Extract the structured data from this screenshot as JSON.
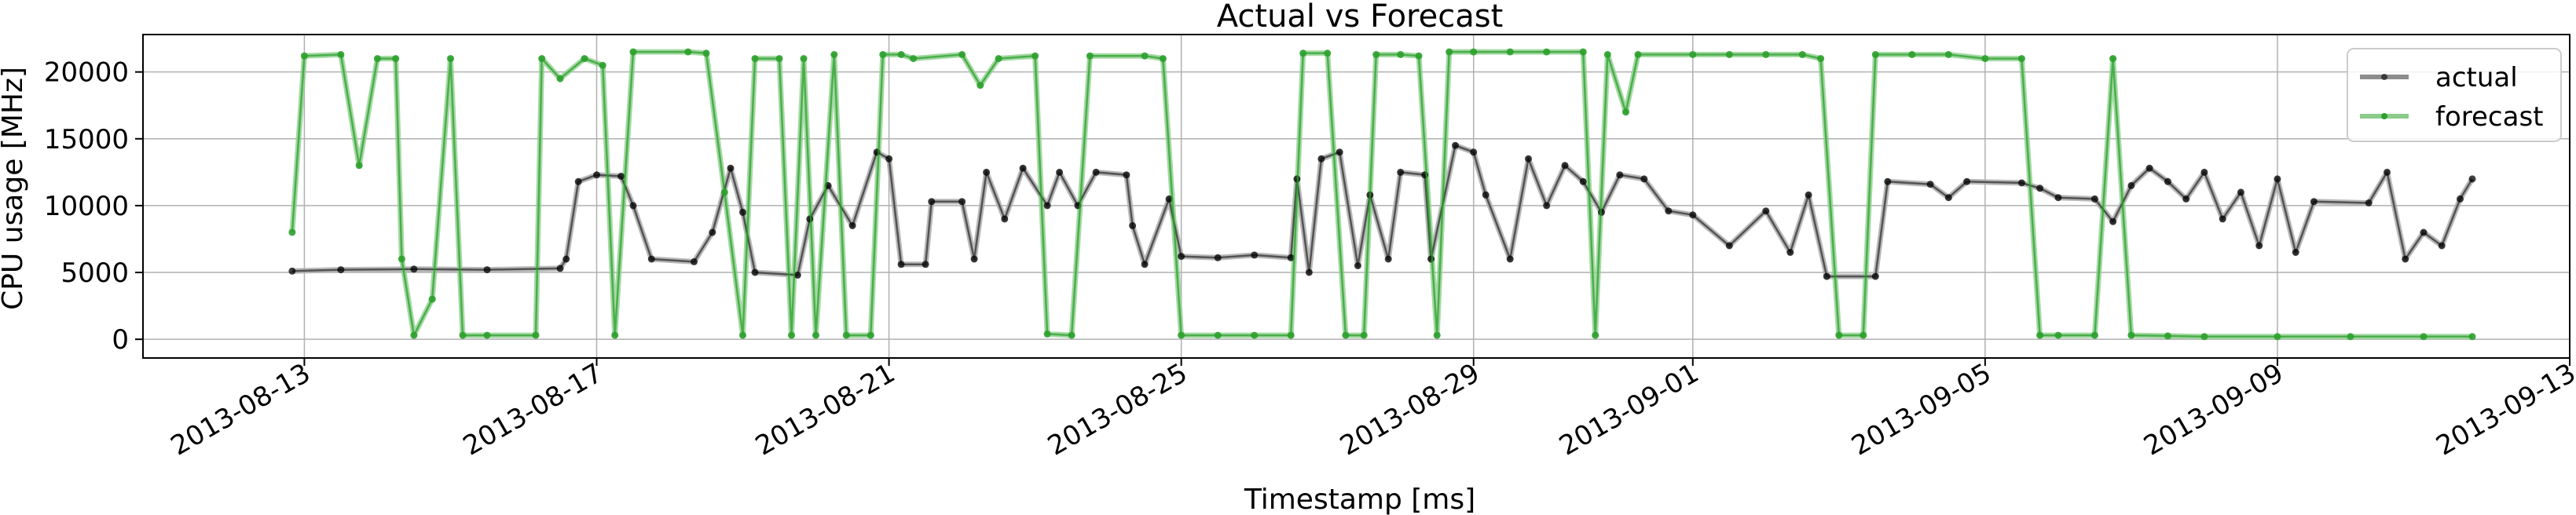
{
  "chart_data": {
    "type": "line",
    "title": "Actual vs Forecast",
    "xlabel": "Timestamp [ms]",
    "ylabel": "CPU usage [MHz]",
    "x_type": "date",
    "xlim": [
      "2013-08-10T19:00",
      "2013-09-13T00:00"
    ],
    "ylim": [
      -1400,
      22800
    ],
    "x_ticks": [
      "2013-08-13",
      "2013-08-17",
      "2013-08-21",
      "2013-08-25",
      "2013-08-29",
      "2013-09-01",
      "2013-09-05",
      "2013-09-09",
      "2013-09-13"
    ],
    "y_ticks": [
      0,
      5000,
      10000,
      15000,
      20000
    ],
    "y_tick_labels": [
      "0",
      "5000",
      "10000",
      "15000",
      "20000"
    ],
    "grid": true,
    "legend": {
      "placement": "top-right"
    },
    "colors": {
      "actual": "#000000",
      "actual_fill": "#b0b0b0",
      "forecast": "#2ca02c",
      "forecast_fill": "#8fd08f"
    },
    "series": [
      {
        "name": "actual",
        "points": [
          [
            "2013-08-12T20:00",
            5100
          ],
          [
            "2013-08-13T12:00",
            5200
          ],
          [
            "2013-08-14T12:00",
            5250
          ],
          [
            "2013-08-15T12:00",
            5200
          ],
          [
            "2013-08-16T12:00",
            5300
          ],
          [
            "2013-08-16T14:00",
            6000
          ],
          [
            "2013-08-16T18:00",
            11800
          ],
          [
            "2013-08-17T00:00",
            12300
          ],
          [
            "2013-08-17T08:00",
            12200
          ],
          [
            "2013-08-17T12:00",
            10000
          ],
          [
            "2013-08-17T18:00",
            6000
          ],
          [
            "2013-08-18T08:00",
            5800
          ],
          [
            "2013-08-18T14:00",
            8000
          ],
          [
            "2013-08-18T20:00",
            12800
          ],
          [
            "2013-08-19T00:00",
            9500
          ],
          [
            "2013-08-19T04:00",
            5000
          ],
          [
            "2013-08-19T18:00",
            4800
          ],
          [
            "2013-08-19T22:00",
            9000
          ],
          [
            "2013-08-20T04:00",
            11500
          ],
          [
            "2013-08-20T12:00",
            8500
          ],
          [
            "2013-08-20T20:00",
            14000
          ],
          [
            "2013-08-21T00:00",
            13500
          ],
          [
            "2013-08-21T04:00",
            5600
          ],
          [
            "2013-08-21T12:00",
            5600
          ],
          [
            "2013-08-21T14:00",
            10300
          ],
          [
            "2013-08-22T00:00",
            10300
          ],
          [
            "2013-08-22T04:00",
            6000
          ],
          [
            "2013-08-22T08:00",
            12500
          ],
          [
            "2013-08-22T14:00",
            9000
          ],
          [
            "2013-08-22T20:00",
            12800
          ],
          [
            "2013-08-23T04:00",
            10000
          ],
          [
            "2013-08-23T08:00",
            12500
          ],
          [
            "2013-08-23T14:00",
            10000
          ],
          [
            "2013-08-23T20:00",
            12500
          ],
          [
            "2013-08-24T06:00",
            12300
          ],
          [
            "2013-08-24T08:00",
            8500
          ],
          [
            "2013-08-24T12:00",
            5600
          ],
          [
            "2013-08-24T20:00",
            10500
          ],
          [
            "2013-08-25T00:00",
            6200
          ],
          [
            "2013-08-25T12:00",
            6100
          ],
          [
            "2013-08-26T00:00",
            6300
          ],
          [
            "2013-08-26T12:00",
            6100
          ],
          [
            "2013-08-26T14:00",
            12000
          ],
          [
            "2013-08-26T18:00",
            5000
          ],
          [
            "2013-08-26T22:00",
            13500
          ],
          [
            "2013-08-27T04:00",
            14000
          ],
          [
            "2013-08-27T10:00",
            5500
          ],
          [
            "2013-08-27T14:00",
            10800
          ],
          [
            "2013-08-27T20:00",
            6000
          ],
          [
            "2013-08-28T00:00",
            12500
          ],
          [
            "2013-08-28T08:00",
            12300
          ],
          [
            "2013-08-28T10:00",
            6000
          ],
          [
            "2013-08-28T18:00",
            14500
          ],
          [
            "2013-08-29T00:00",
            14000
          ],
          [
            "2013-08-29T04:00",
            10800
          ],
          [
            "2013-08-29T12:00",
            6000
          ],
          [
            "2013-08-29T18:00",
            13500
          ],
          [
            "2013-08-30T00:00",
            10000
          ],
          [
            "2013-08-30T06:00",
            13000
          ],
          [
            "2013-08-30T12:00",
            11800
          ],
          [
            "2013-08-30T18:00",
            9500
          ],
          [
            "2013-08-31T00:00",
            12300
          ],
          [
            "2013-08-31T08:00",
            12000
          ],
          [
            "2013-08-31T16:00",
            9600
          ],
          [
            "2013-09-01T00:00",
            9300
          ],
          [
            "2013-09-01T12:00",
            7000
          ],
          [
            "2013-09-02T00:00",
            9600
          ],
          [
            "2013-09-02T08:00",
            6500
          ],
          [
            "2013-09-02T14:00",
            10800
          ],
          [
            "2013-09-02T20:00",
            4700
          ],
          [
            "2013-09-03T12:00",
            4700
          ],
          [
            "2013-09-03T16:00",
            11800
          ],
          [
            "2013-09-04T06:00",
            11600
          ],
          [
            "2013-09-04T12:00",
            10600
          ],
          [
            "2013-09-04T18:00",
            11800
          ],
          [
            "2013-09-05T12:00",
            11700
          ],
          [
            "2013-09-05T18:00",
            11300
          ],
          [
            "2013-09-06T00:00",
            10600
          ],
          [
            "2013-09-06T12:00",
            10500
          ],
          [
            "2013-09-06T18:00",
            8800
          ],
          [
            "2013-09-07T00:00",
            11500
          ],
          [
            "2013-09-07T06:00",
            12800
          ],
          [
            "2013-09-07T12:00",
            11800
          ],
          [
            "2013-09-07T18:00",
            10500
          ],
          [
            "2013-09-08T00:00",
            12500
          ],
          [
            "2013-09-08T06:00",
            9000
          ],
          [
            "2013-09-08T12:00",
            11000
          ],
          [
            "2013-09-08T18:00",
            7000
          ],
          [
            "2013-09-09T00:00",
            12000
          ],
          [
            "2013-09-09T06:00",
            6500
          ],
          [
            "2013-09-09T12:00",
            10300
          ],
          [
            "2013-09-10T06:00",
            10200
          ],
          [
            "2013-09-10T12:00",
            12500
          ],
          [
            "2013-09-10T18:00",
            6000
          ],
          [
            "2013-09-11T00:00",
            8000
          ],
          [
            "2013-09-11T06:00",
            7000
          ],
          [
            "2013-09-11T12:00",
            10500
          ],
          [
            "2013-09-11T16:00",
            12000
          ]
        ]
      },
      {
        "name": "forecast",
        "points": [
          [
            "2013-08-12T20:00",
            8000
          ],
          [
            "2013-08-13T00:00",
            21200
          ],
          [
            "2013-08-13T12:00",
            21300
          ],
          [
            "2013-08-13T18:00",
            13000
          ],
          [
            "2013-08-14T00:00",
            21000
          ],
          [
            "2013-08-14T06:00",
            21000
          ],
          [
            "2013-08-14T08:00",
            6000
          ],
          [
            "2013-08-14T12:00",
            300
          ],
          [
            "2013-08-14T18:00",
            3000
          ],
          [
            "2013-08-15T00:00",
            21000
          ],
          [
            "2013-08-15T04:00",
            300
          ],
          [
            "2013-08-15T12:00",
            300
          ],
          [
            "2013-08-16T04:00",
            300
          ],
          [
            "2013-08-16T06:00",
            21000
          ],
          [
            "2013-08-16T12:00",
            19500
          ],
          [
            "2013-08-16T20:00",
            21000
          ],
          [
            "2013-08-17T02:00",
            20500
          ],
          [
            "2013-08-17T06:00",
            300
          ],
          [
            "2013-08-17T12:00",
            21500
          ],
          [
            "2013-08-18T06:00",
            21500
          ],
          [
            "2013-08-18T12:00",
            21400
          ],
          [
            "2013-08-18T18:00",
            11000
          ],
          [
            "2013-08-19T00:00",
            300
          ],
          [
            "2013-08-19T04:00",
            21000
          ],
          [
            "2013-08-19T12:00",
            21000
          ],
          [
            "2013-08-19T16:00",
            300
          ],
          [
            "2013-08-19T20:00",
            21000
          ],
          [
            "2013-08-20T00:00",
            300
          ],
          [
            "2013-08-20T06:00",
            21300
          ],
          [
            "2013-08-20T10:00",
            300
          ],
          [
            "2013-08-20T18:00",
            300
          ],
          [
            "2013-08-20T22:00",
            21300
          ],
          [
            "2013-08-21T04:00",
            21300
          ],
          [
            "2013-08-21T08:00",
            21000
          ],
          [
            "2013-08-22T00:00",
            21300
          ],
          [
            "2013-08-22T06:00",
            19000
          ],
          [
            "2013-08-22T12:00",
            21000
          ],
          [
            "2013-08-23T00:00",
            21200
          ],
          [
            "2013-08-23T04:00",
            400
          ],
          [
            "2013-08-23T12:00",
            300
          ],
          [
            "2013-08-23T18:00",
            21200
          ],
          [
            "2013-08-24T12:00",
            21200
          ],
          [
            "2013-08-24T18:00",
            21000
          ],
          [
            "2013-08-25T00:00",
            300
          ],
          [
            "2013-08-25T12:00",
            300
          ],
          [
            "2013-08-26T00:00",
            300
          ],
          [
            "2013-08-26T12:00",
            300
          ],
          [
            "2013-08-26T16:00",
            21400
          ],
          [
            "2013-08-27T00:00",
            21400
          ],
          [
            "2013-08-27T06:00",
            300
          ],
          [
            "2013-08-27T12:00",
            300
          ],
          [
            "2013-08-27T16:00",
            21300
          ],
          [
            "2013-08-28T00:00",
            21300
          ],
          [
            "2013-08-28T06:00",
            21200
          ],
          [
            "2013-08-28T12:00",
            300
          ],
          [
            "2013-08-28T16:00",
            21500
          ],
          [
            "2013-08-29T00:00",
            21500
          ],
          [
            "2013-08-29T12:00",
            21500
          ],
          [
            "2013-08-30T00:00",
            21500
          ],
          [
            "2013-08-30T12:00",
            21500
          ],
          [
            "2013-08-30T16:00",
            300
          ],
          [
            "2013-08-30T20:00",
            21300
          ],
          [
            "2013-08-31T02:00",
            17000
          ],
          [
            "2013-08-31T06:00",
            21300
          ],
          [
            "2013-09-01T00:00",
            21300
          ],
          [
            "2013-09-01T12:00",
            21300
          ],
          [
            "2013-09-02T00:00",
            21300
          ],
          [
            "2013-09-02T12:00",
            21300
          ],
          [
            "2013-09-02T18:00",
            21000
          ],
          [
            "2013-09-03T00:00",
            300
          ],
          [
            "2013-09-03T08:00",
            300
          ],
          [
            "2013-09-03T12:00",
            21300
          ],
          [
            "2013-09-04T00:00",
            21300
          ],
          [
            "2013-09-04T12:00",
            21300
          ],
          [
            "2013-09-05T00:00",
            21000
          ],
          [
            "2013-09-05T12:00",
            21000
          ],
          [
            "2013-09-05T18:00",
            300
          ],
          [
            "2013-09-06T00:00",
            300
          ],
          [
            "2013-09-06T12:00",
            300
          ],
          [
            "2013-09-06T18:00",
            21000
          ],
          [
            "2013-09-07T00:00",
            300
          ],
          [
            "2013-09-07T12:00",
            250
          ],
          [
            "2013-09-08T00:00",
            200
          ],
          [
            "2013-09-09T00:00",
            200
          ],
          [
            "2013-09-10T00:00",
            200
          ],
          [
            "2013-09-11T00:00",
            200
          ],
          [
            "2013-09-11T16:00",
            200
          ]
        ]
      }
    ]
  }
}
